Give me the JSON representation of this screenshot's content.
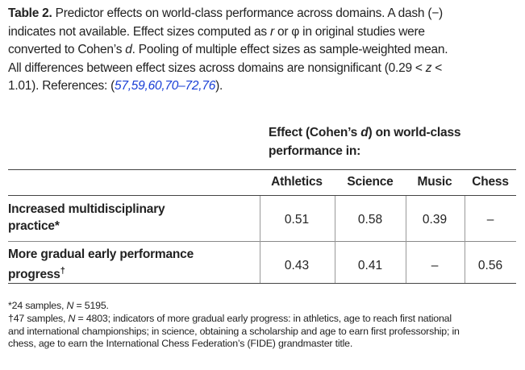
{
  "caption": {
    "segments": [
      "Table 2.",
      " Predictor effects on world-class performance across domains. A dash (−)",
      "indicates not available. Effect sizes computed as ",
      "r",
      " or φ in original studies were",
      "converted to Cohen’s ",
      "d",
      ". Pooling of multiple effect sizes as sample-weighted mean.",
      "All differences between effect sizes across domains are nonsignificant (0.29 < ",
      "z",
      " <",
      "1.01). References: (",
      "57",
      ",",
      "59",
      ",",
      "60",
      ",",
      "70–72",
      ",",
      "76",
      ")."
    ]
  },
  "table": {
    "group_header": [
      "Effect (Cohen’s ",
      "d",
      ") on world-class",
      "performance in:"
    ],
    "columns": [
      "Athletics",
      "Science",
      "Music",
      "Chess"
    ],
    "rows": [
      {
        "label": [
          "Increased multidisciplinary",
          "practice*"
        ],
        "values": [
          "0.51",
          "0.58",
          "0.39",
          "–"
        ]
      },
      {
        "label": [
          "More gradual early performance",
          "progress",
          "†"
        ],
        "values": [
          "0.43",
          "0.41",
          "–",
          "0.56"
        ]
      }
    ]
  },
  "footnotes": [
    [
      "*24 samples, ",
      "N",
      " = 5195."
    ],
    [
      "†47 samples, ",
      "N",
      " = 4803; indicators of more gradual early progress: in athletics, age to reach first national",
      "and international championships; in science, obtaining a scholarship and age to earn first professorship; in",
      "chess, age to earn the International Chess Federation’s (FIDE) grandmaster title."
    ]
  ]
}
